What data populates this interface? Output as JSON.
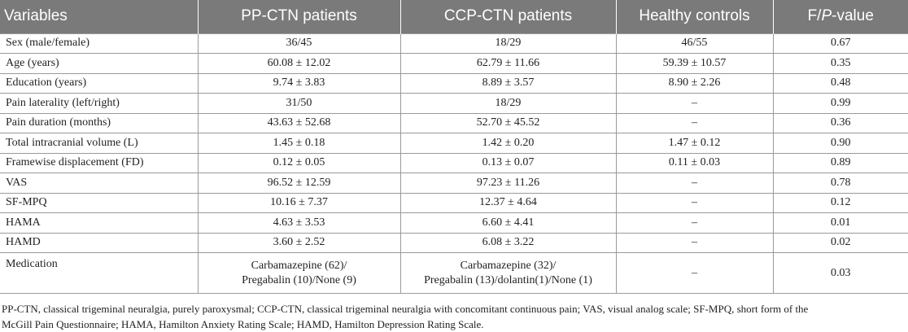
{
  "table": {
    "headers": [
      "Variables",
      "PP-CTN patients",
      "CCP-CTN patients",
      "Healthy controls",
      "F/",
      "P",
      "-value"
    ],
    "rows": [
      {
        "variable": "Sex (male/female)",
        "pp": "36/45",
        "ccp": "18/29",
        "hc": "46/55",
        "p": "0.67"
      },
      {
        "variable": "Age (years)",
        "pp": "60.08 ± 12.02",
        "ccp": "62.79 ± 11.66",
        "hc": "59.39 ± 10.57",
        "p": "0.35"
      },
      {
        "variable": "Education (years)",
        "pp": "9.74 ± 3.83",
        "ccp": "8.89 ± 3.57",
        "hc": "8.90 ± 2.26",
        "p": "0.48"
      },
      {
        "variable": "Pain laterality (left/right)",
        "pp": "31/50",
        "ccp": "18/29",
        "hc": "–",
        "p": "0.99"
      },
      {
        "variable": "Pain duration (months)",
        "pp": "43.63 ± 52.68",
        "ccp": "52.70 ± 45.52",
        "hc": "–",
        "p": "0.36"
      },
      {
        "variable": "Total intracranial volume (L)",
        "pp": "1.45 ± 0.18",
        "ccp": "1.42 ± 0.20",
        "hc": "1.47 ± 0.12",
        "p": "0.90"
      },
      {
        "variable": "Framewise displacement (FD)",
        "pp": "0.12 ± 0.05",
        "ccp": "0.13 ± 0.07",
        "hc": "0.11 ± 0.03",
        "p": "0.89"
      },
      {
        "variable": "VAS",
        "pp": "96.52 ± 12.59",
        "ccp": "97.23 ± 11.26",
        "hc": "–",
        "p": "0.78"
      },
      {
        "variable": "SF-MPQ",
        "pp": "10.16 ± 7.37",
        "ccp": "12.37 ± 4.64",
        "hc": "–",
        "p": "0.12"
      },
      {
        "variable": "HAMA",
        "pp": "4.63 ± 3.53",
        "ccp": "6.60 ± 4.41",
        "hc": "–",
        "p": "0.01"
      },
      {
        "variable": "HAMD",
        "pp": "3.60 ± 2.52",
        "ccp": "6.08 ± 3.22",
        "hc": "–",
        "p": "0.02"
      }
    ],
    "medication": {
      "variable": "Medication",
      "pp_line1": "Carbamazepine (62)/",
      "pp_line2": "Pregabalin (10)/None (9)",
      "ccp_line1": "Carbamazepine (32)/",
      "ccp_line2": "Pregabalin (13)/dolantin(1)/None (1)",
      "hc": "–",
      "p": "0.03"
    }
  },
  "footnote": {
    "line1": "PP-CTN, classical trigeminal neuralgia, purely paroxysmal; CCP-CTN, classical trigeminal neuralgia with concomitant continuous pain; VAS, visual analog scale; SF-MPQ, short form of the",
    "line2": "McGill Pain Questionnaire; HAMA, Hamilton Anxiety Rating Scale; HAMD, Hamilton Depression Rating Scale."
  }
}
